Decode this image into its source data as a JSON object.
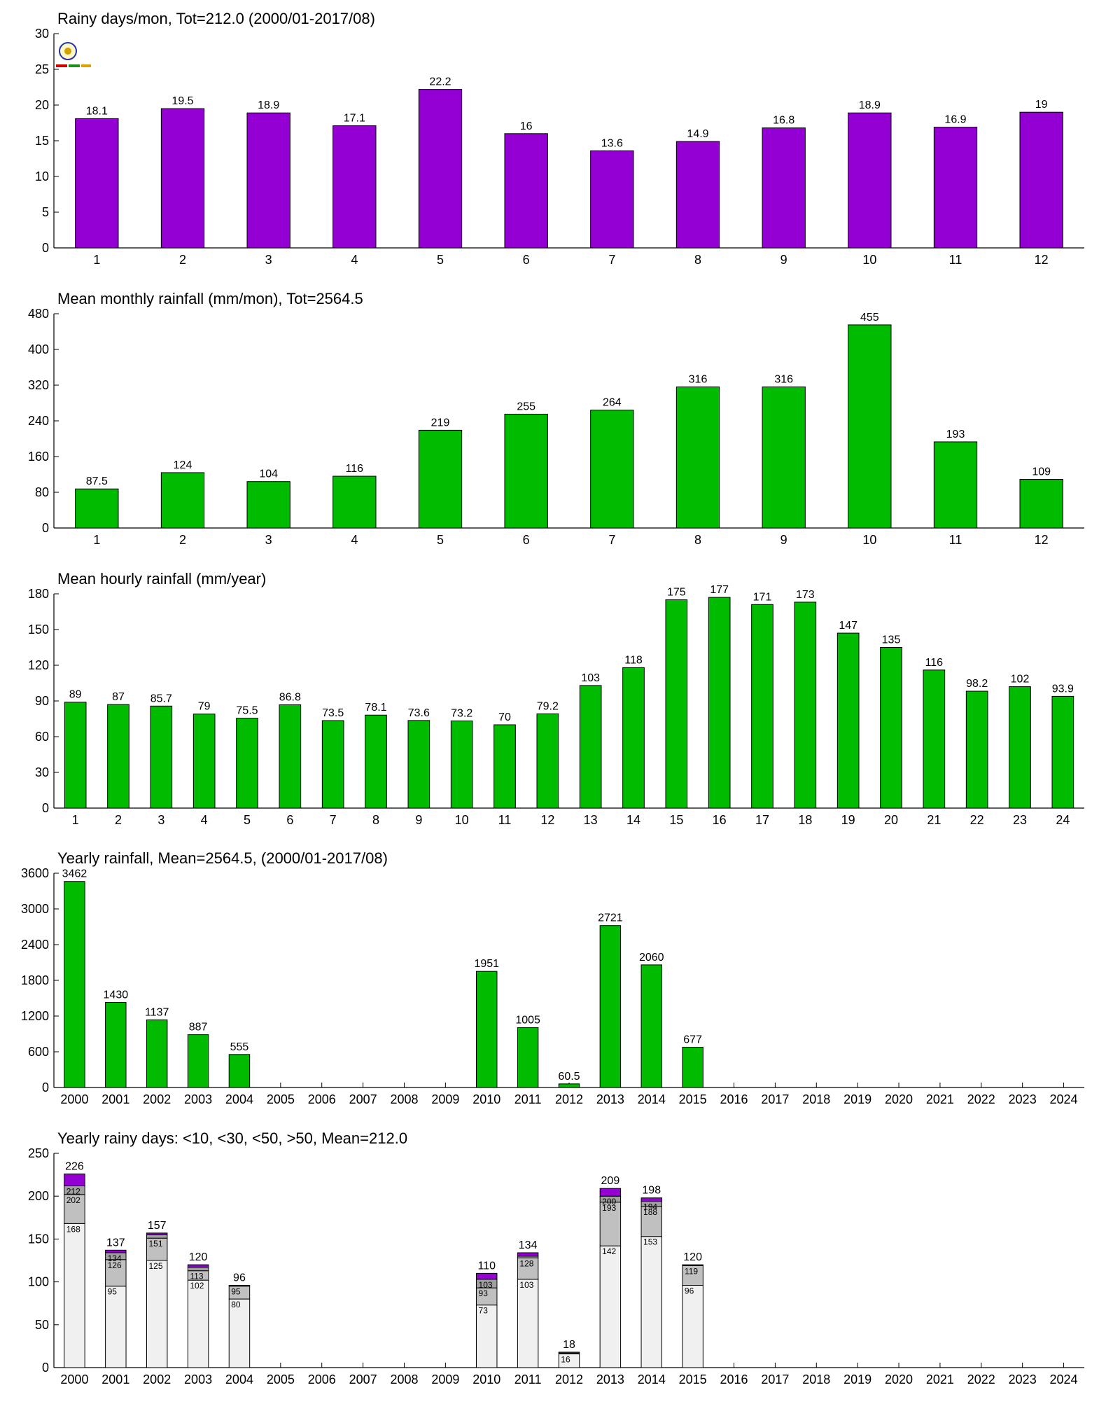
{
  "charts": [
    {
      "type": "bar",
      "title": "Rainy days/mon, Tot=212.0 (2000/01-2017/08)",
      "color": "#9400d3",
      "categories": [
        "1",
        "2",
        "3",
        "4",
        "5",
        "6",
        "7",
        "8",
        "9",
        "10",
        "11",
        "12"
      ],
      "values": [
        18.1,
        19.5,
        18.9,
        17.1,
        22.2,
        16,
        13.6,
        14.9,
        16.8,
        18.9,
        16.9,
        19
      ],
      "labels": [
        "18.1",
        "19.5",
        "18.9",
        "17.1",
        "22.2",
        "16",
        "13.6",
        "14.9",
        "16.8",
        "18.9",
        "16.9",
        "19"
      ],
      "ylim": [
        0,
        30
      ],
      "yticks": [
        0,
        5,
        10,
        15,
        20,
        25,
        30
      ],
      "logo": true
    },
    {
      "type": "bar",
      "title": "Mean monthly rainfall (mm/mon), Tot=2564.5",
      "color": "#00bb00",
      "categories": [
        "1",
        "2",
        "3",
        "4",
        "5",
        "6",
        "7",
        "8",
        "9",
        "10",
        "11",
        "12"
      ],
      "values": [
        87.5,
        124,
        104,
        116,
        219,
        255,
        264,
        316,
        316,
        455,
        193,
        109
      ],
      "labels": [
        "87.5",
        "124",
        "104",
        "116",
        "219",
        "255",
        "264",
        "316",
        "316",
        "455",
        "193",
        "109"
      ],
      "ylim": [
        0,
        480
      ],
      "yticks": [
        0,
        80,
        160,
        240,
        320,
        400,
        480
      ]
    },
    {
      "type": "bar",
      "title": "Mean hourly rainfall (mm/year)",
      "color": "#00bb00",
      "categories": [
        "1",
        "2",
        "3",
        "4",
        "5",
        "6",
        "7",
        "8",
        "9",
        "10",
        "11",
        "12",
        "13",
        "14",
        "15",
        "16",
        "17",
        "18",
        "19",
        "20",
        "21",
        "22",
        "23",
        "24"
      ],
      "values": [
        89,
        87,
        85.7,
        79,
        75.5,
        86.8,
        73.5,
        78.1,
        73.6,
        73.2,
        70,
        79.2,
        103,
        118,
        175,
        177,
        171,
        173,
        147,
        135,
        116,
        98.2,
        102,
        93.9
      ],
      "labels": [
        "89",
        "87",
        "85.7",
        "79",
        "75.5",
        "86.8",
        "73.5",
        "78.1",
        "73.6",
        "73.2",
        "70",
        "79.2",
        "103",
        "118",
        "175",
        "177",
        "171",
        "173",
        "147",
        "135",
        "116",
        "98.2",
        "102",
        "93.9"
      ],
      "ylim": [
        0,
        180
      ],
      "yticks": [
        0,
        30,
        60,
        90,
        120,
        150,
        180
      ]
    },
    {
      "type": "bar",
      "title": "Yearly rainfall, Mean=2564.5, (2000/01-2017/08)",
      "color": "#00bb00",
      "categories": [
        "2000",
        "2001",
        "2002",
        "2003",
        "2004",
        "2005",
        "2006",
        "2007",
        "2008",
        "2009",
        "2010",
        "2011",
        "2012",
        "2013",
        "2014",
        "2015",
        "2016",
        "2017",
        "2018",
        "2019",
        "2020",
        "2021",
        "2022",
        "2023",
        "2024"
      ],
      "values": [
        3462,
        1430,
        1137,
        887,
        555,
        null,
        null,
        null,
        null,
        null,
        1951,
        1005,
        60.5,
        2721,
        2060,
        677,
        null,
        null,
        null,
        null,
        null,
        null,
        null,
        null,
        null
      ],
      "labels": [
        "3462",
        "1430",
        "1137",
        "887",
        "555",
        "",
        "",
        "",
        "",
        "",
        "1951",
        "1005",
        "60.5",
        "2721",
        "2060",
        "677",
        "",
        "",
        "",
        "",
        "",
        "",
        "",
        "",
        ""
      ],
      "ylim": [
        0,
        3600
      ],
      "yticks": [
        0,
        600,
        1200,
        1800,
        2400,
        3000,
        3600
      ]
    },
    {
      "type": "stacked-bar",
      "title": "Yearly rainy days: <10, <30, <50, >50, Mean=212.0",
      "colors": [
        "#f0f0f0",
        "#c0c0c0",
        "#a0a0a0",
        "#9400d3"
      ],
      "categories": [
        "2000",
        "2001",
        "2002",
        "2003",
        "2004",
        "2005",
        "2006",
        "2007",
        "2008",
        "2009",
        "2010",
        "2011",
        "2012",
        "2013",
        "2014",
        "2015",
        "2016",
        "2017",
        "2018",
        "2019",
        "2020",
        "2021",
        "2022",
        "2023",
        "2024"
      ],
      "cumulative": [
        [
          168,
          202,
          212,
          226
        ],
        [
          95,
          126,
          134,
          137
        ],
        [
          125,
          151,
          155,
          157
        ],
        [
          102,
          113,
          117,
          120
        ],
        [
          80,
          95,
          96,
          96
        ],
        null,
        null,
        null,
        null,
        null,
        [
          73,
          93,
          103,
          110
        ],
        [
          103,
          128,
          130,
          134
        ],
        [
          16,
          17,
          18,
          18
        ],
        [
          142,
          193,
          200,
          209
        ],
        [
          153,
          188,
          194,
          198
        ],
        [
          96,
          119,
          120,
          120
        ],
        null,
        null,
        null,
        null,
        null,
        null,
        null,
        null,
        null
      ],
      "totals": [
        "226",
        "137",
        "157",
        "120",
        "96",
        "",
        "",
        "",
        "",
        "",
        "110",
        "134",
        "18",
        "209",
        "198",
        "120",
        "",
        "",
        "",
        "",
        "",
        "",
        "",
        "",
        ""
      ],
      "seg_labels": [
        [
          "168",
          "202",
          "212"
        ],
        [
          "95",
          "126",
          "134"
        ],
        [
          "125",
          "151",
          ""
        ],
        [
          "102",
          "113",
          ""
        ],
        [
          "80",
          "95",
          ""
        ],
        null,
        null,
        null,
        null,
        null,
        [
          "73",
          "93",
          "103"
        ],
        [
          "103",
          "128",
          ""
        ],
        [
          "16",
          "",
          ""
        ],
        [
          "142",
          "193",
          "200"
        ],
        [
          "153",
          "188",
          "194"
        ],
        [
          "96",
          "119",
          ""
        ],
        null,
        null,
        null,
        null,
        null,
        null,
        null,
        null,
        null
      ],
      "ylim": [
        0,
        250
      ],
      "yticks": [
        0,
        50,
        100,
        150,
        200,
        250
      ]
    }
  ]
}
